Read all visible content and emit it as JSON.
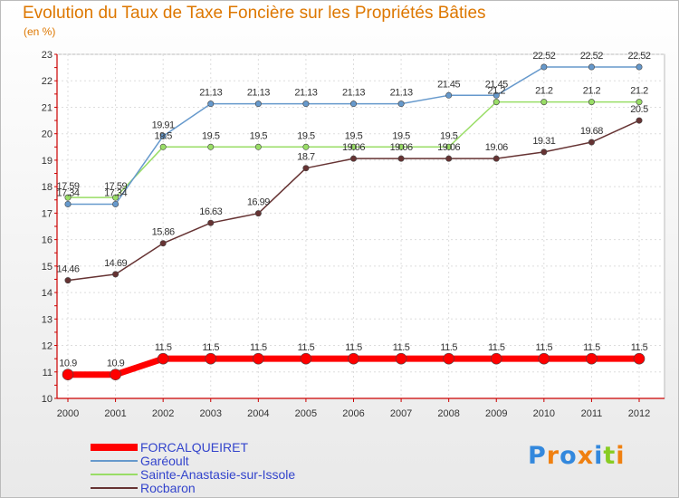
{
  "chart_data": {
    "type": "line",
    "title": "Evolution du Taux de Taxe Foncière sur les Propriétés Bâties",
    "unit_label": "(en %)",
    "categories": [
      "2000",
      "2001",
      "2002",
      "2003",
      "2004",
      "2005",
      "2006",
      "2007",
      "2008",
      "2009",
      "2010",
      "2011",
      "2012"
    ],
    "ylim": [
      10,
      23
    ],
    "yticks": [
      "10",
      "11",
      "12",
      "13",
      "14",
      "15",
      "16",
      "17",
      "18",
      "19",
      "20",
      "21",
      "22",
      "23"
    ],
    "series": [
      {
        "name": "FORCALQUEIRET",
        "color": "#ff0000",
        "values": [
          10.9,
          10.9,
          11.5,
          11.5,
          11.5,
          11.5,
          11.5,
          11.5,
          11.5,
          11.5,
          11.5,
          11.5,
          11.5
        ],
        "labels": [
          "10.9",
          "10.9",
          "11.5",
          "11.5",
          "11.5",
          "11.5",
          "11.5",
          "11.5",
          "11.5",
          "11.5",
          "11.5",
          "11.5",
          "11.5"
        ]
      },
      {
        "name": "Garéoult",
        "color": "#6699cc",
        "values": [
          17.34,
          17.34,
          19.91,
          21.13,
          21.13,
          21.13,
          21.13,
          21.13,
          21.45,
          21.45,
          22.52,
          22.52,
          22.52
        ],
        "labels": [
          "17.34",
          "17.34",
          "19.91",
          "21.13",
          "21.13",
          "21.13",
          "21.13",
          "21.13",
          "21.45",
          "21.45",
          "22.52",
          "22.52",
          "22.52"
        ]
      },
      {
        "name": "Sainte-Anastasie-sur-Issole",
        "color": "#99dd66",
        "values": [
          17.59,
          17.59,
          19.5,
          19.5,
          19.5,
          19.5,
          19.5,
          19.5,
          19.5,
          21.2,
          21.2,
          21.2,
          21.2
        ],
        "labels": [
          "17.59",
          "17.59",
          "19.5",
          "19.5",
          "19.5",
          "19.5",
          "19.5",
          "19.5",
          "19.5",
          "21.2",
          "21.2",
          "21.2",
          "21.2"
        ]
      },
      {
        "name": "Rocbaron",
        "color": "#663333",
        "values": [
          14.46,
          14.69,
          15.86,
          16.63,
          16.99,
          18.7,
          19.06,
          19.06,
          19.06,
          19.06,
          19.31,
          19.68,
          20.5
        ],
        "labels": [
          "14.46",
          "14.69",
          "15.86",
          "16.63",
          "16.99",
          "18.7",
          "19.06",
          "19.06",
          "19.06",
          "19.06",
          "19.31",
          "19.68",
          "20.5"
        ]
      }
    ]
  },
  "logo": {
    "text": "Proxiti",
    "colors": [
      "#3388dd",
      "#f08010",
      "#3388dd",
      "#f08010",
      "#3388dd",
      "#88cc22",
      "#f08010"
    ]
  }
}
